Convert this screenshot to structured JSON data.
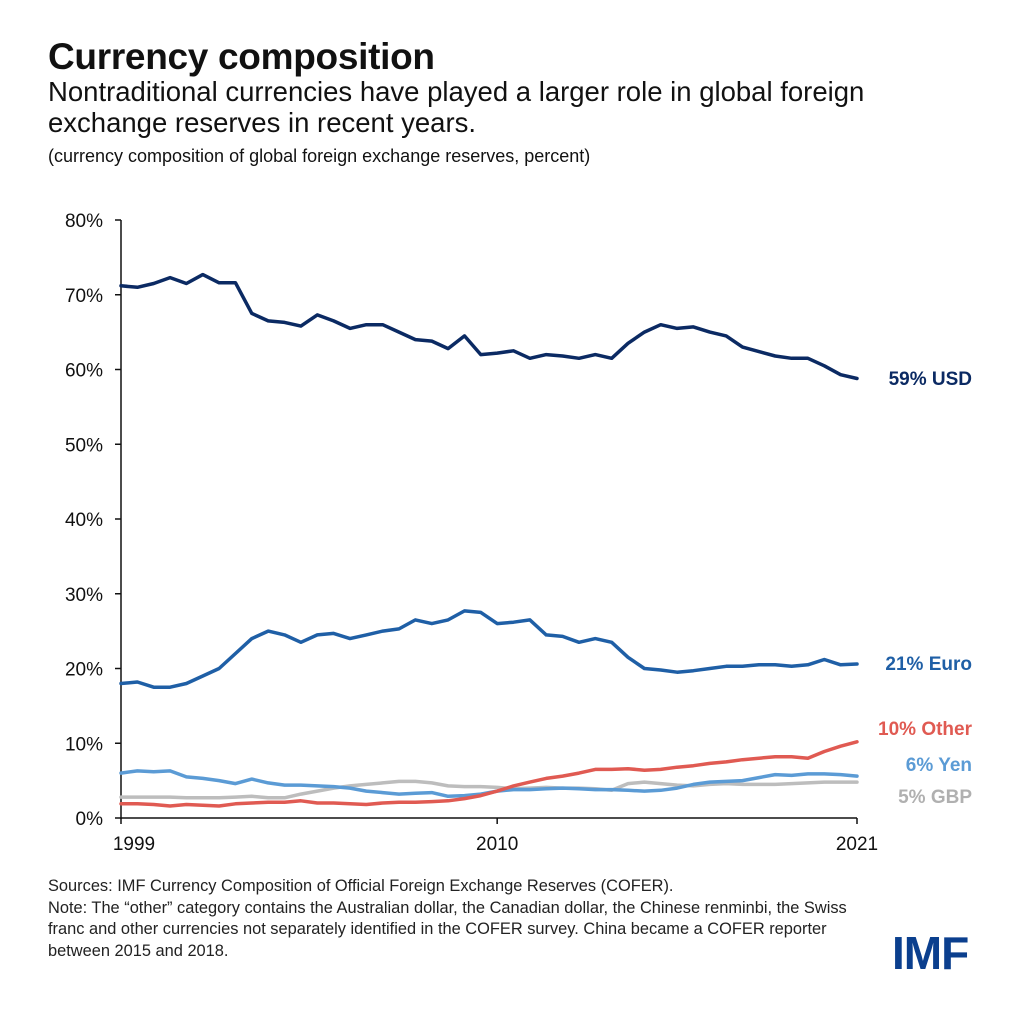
{
  "header": {
    "title": "Currency composition",
    "subtitle": "Nontraditional currencies have played a larger role in global foreign exchange reserves in recent years.",
    "note": "(currency composition of global foreign exchange reserves, percent)"
  },
  "footer": {
    "sources": "Sources: IMF Currency Composition of Official Foreign Exchange Reserves (COFER).",
    "note": "Note: The “other” category contains the Australian dollar, the Canadian dollar, the Chinese renminbi, the Swiss franc and other currencies not separately identified in the COFER survey. China became a COFER reporter between 2015 and 2018.",
    "logo": "IMF"
  },
  "chart_data": {
    "type": "line",
    "ylim": [
      0,
      80
    ],
    "xlim": [
      1999,
      2021.5
    ],
    "yticks": [
      "0%",
      "10%",
      "20%",
      "30%",
      "40%",
      "50%",
      "60%",
      "70%",
      "80%"
    ],
    "ytick_values": [
      0,
      10,
      20,
      30,
      40,
      50,
      60,
      70,
      80
    ],
    "xticks": [
      "1999",
      "2010",
      "2021"
    ],
    "xtick_values": [
      1999,
      2010,
      2021
    ],
    "grid": false,
    "x": [
      1999.0,
      1999.5,
      2000.0,
      2000.5,
      2001.0,
      2001.5,
      2002.0,
      2002.5,
      2003.0,
      2003.5,
      2004.0,
      2004.5,
      2005.0,
      2005.5,
      2006.0,
      2006.5,
      2007.0,
      2007.5,
      2008.0,
      2008.5,
      2009.0,
      2009.5,
      2010.0,
      2010.5,
      2011.0,
      2011.5,
      2012.0,
      2012.5,
      2013.0,
      2013.5,
      2014.0,
      2014.5,
      2015.0,
      2015.5,
      2016.0,
      2016.5,
      2017.0,
      2017.5,
      2018.0,
      2018.5,
      2019.0,
      2019.5,
      2020.0,
      2020.5,
      2021.0,
      2021.5
    ],
    "series": [
      {
        "name": "USD",
        "label": "59% USD",
        "color": "#0b2a63",
        "values": [
          71.2,
          71.0,
          71.5,
          72.3,
          71.5,
          72.7,
          71.6,
          71.6,
          67.5,
          66.5,
          66.3,
          65.8,
          67.3,
          66.5,
          65.5,
          66.0,
          66.0,
          65.0,
          64.0,
          63.8,
          62.8,
          64.5,
          62.0,
          62.2,
          62.5,
          61.5,
          62.0,
          61.8,
          61.5,
          62.0,
          61.5,
          63.5,
          65.0,
          66.0,
          65.5,
          65.7,
          65.0,
          64.5,
          63.0,
          62.4,
          61.8,
          61.5,
          61.5,
          60.5,
          59.3,
          58.8
        ]
      },
      {
        "name": "Euro",
        "label": "21% Euro",
        "color": "#1f5fa6",
        "values": [
          18.0,
          18.2,
          17.5,
          17.5,
          18.0,
          19.0,
          20.0,
          22.0,
          24.0,
          25.0,
          24.5,
          23.5,
          24.5,
          24.7,
          24.0,
          24.5,
          25.0,
          25.3,
          26.5,
          26.0,
          26.5,
          27.7,
          27.5,
          26.0,
          26.2,
          26.5,
          24.5,
          24.3,
          23.5,
          24.0,
          23.5,
          21.5,
          20.0,
          19.8,
          19.5,
          19.7,
          20.0,
          20.3,
          20.3,
          20.5,
          20.5,
          20.3,
          20.5,
          21.2,
          20.5,
          20.6
        ]
      },
      {
        "name": "Other",
        "label": "10% Other",
        "color": "#e05a52",
        "values": [
          1.9,
          1.9,
          1.8,
          1.6,
          1.8,
          1.7,
          1.6,
          1.9,
          2.0,
          2.1,
          2.1,
          2.3,
          2.0,
          2.0,
          1.9,
          1.8,
          2.0,
          2.1,
          2.1,
          2.2,
          2.3,
          2.6,
          3.0,
          3.6,
          4.3,
          4.8,
          5.3,
          5.6,
          6.0,
          6.5,
          6.5,
          6.6,
          6.4,
          6.5,
          6.8,
          7.0,
          7.3,
          7.5,
          7.8,
          8.0,
          8.2,
          8.2,
          8.0,
          8.9,
          9.6,
          10.2
        ]
      },
      {
        "name": "Yen",
        "label": "6% Yen",
        "color": "#5b9bd5",
        "values": [
          6.0,
          6.3,
          6.2,
          6.3,
          5.5,
          5.3,
          5.0,
          4.6,
          5.2,
          4.7,
          4.4,
          4.4,
          4.3,
          4.2,
          4.0,
          3.6,
          3.4,
          3.2,
          3.3,
          3.4,
          2.9,
          3.0,
          3.2,
          3.6,
          3.8,
          3.8,
          3.9,
          4.0,
          3.9,
          3.8,
          3.8,
          3.7,
          3.6,
          3.7,
          4.0,
          4.5,
          4.8,
          4.9,
          5.0,
          5.4,
          5.8,
          5.7,
          5.9,
          5.9,
          5.8,
          5.6
        ]
      },
      {
        "name": "GBP",
        "label": "5% GBP",
        "color": "#bdbdbd",
        "values": [
          2.8,
          2.8,
          2.8,
          2.8,
          2.7,
          2.7,
          2.7,
          2.8,
          2.9,
          2.7,
          2.7,
          3.2,
          3.6,
          4.0,
          4.3,
          4.5,
          4.7,
          4.9,
          4.9,
          4.7,
          4.3,
          4.2,
          4.2,
          4.1,
          3.9,
          4.0,
          4.1,
          4.0,
          4.0,
          3.9,
          3.7,
          4.6,
          4.8,
          4.6,
          4.4,
          4.3,
          4.5,
          4.6,
          4.5,
          4.5,
          4.5,
          4.6,
          4.7,
          4.8,
          4.8,
          4.8
        ]
      }
    ]
  }
}
